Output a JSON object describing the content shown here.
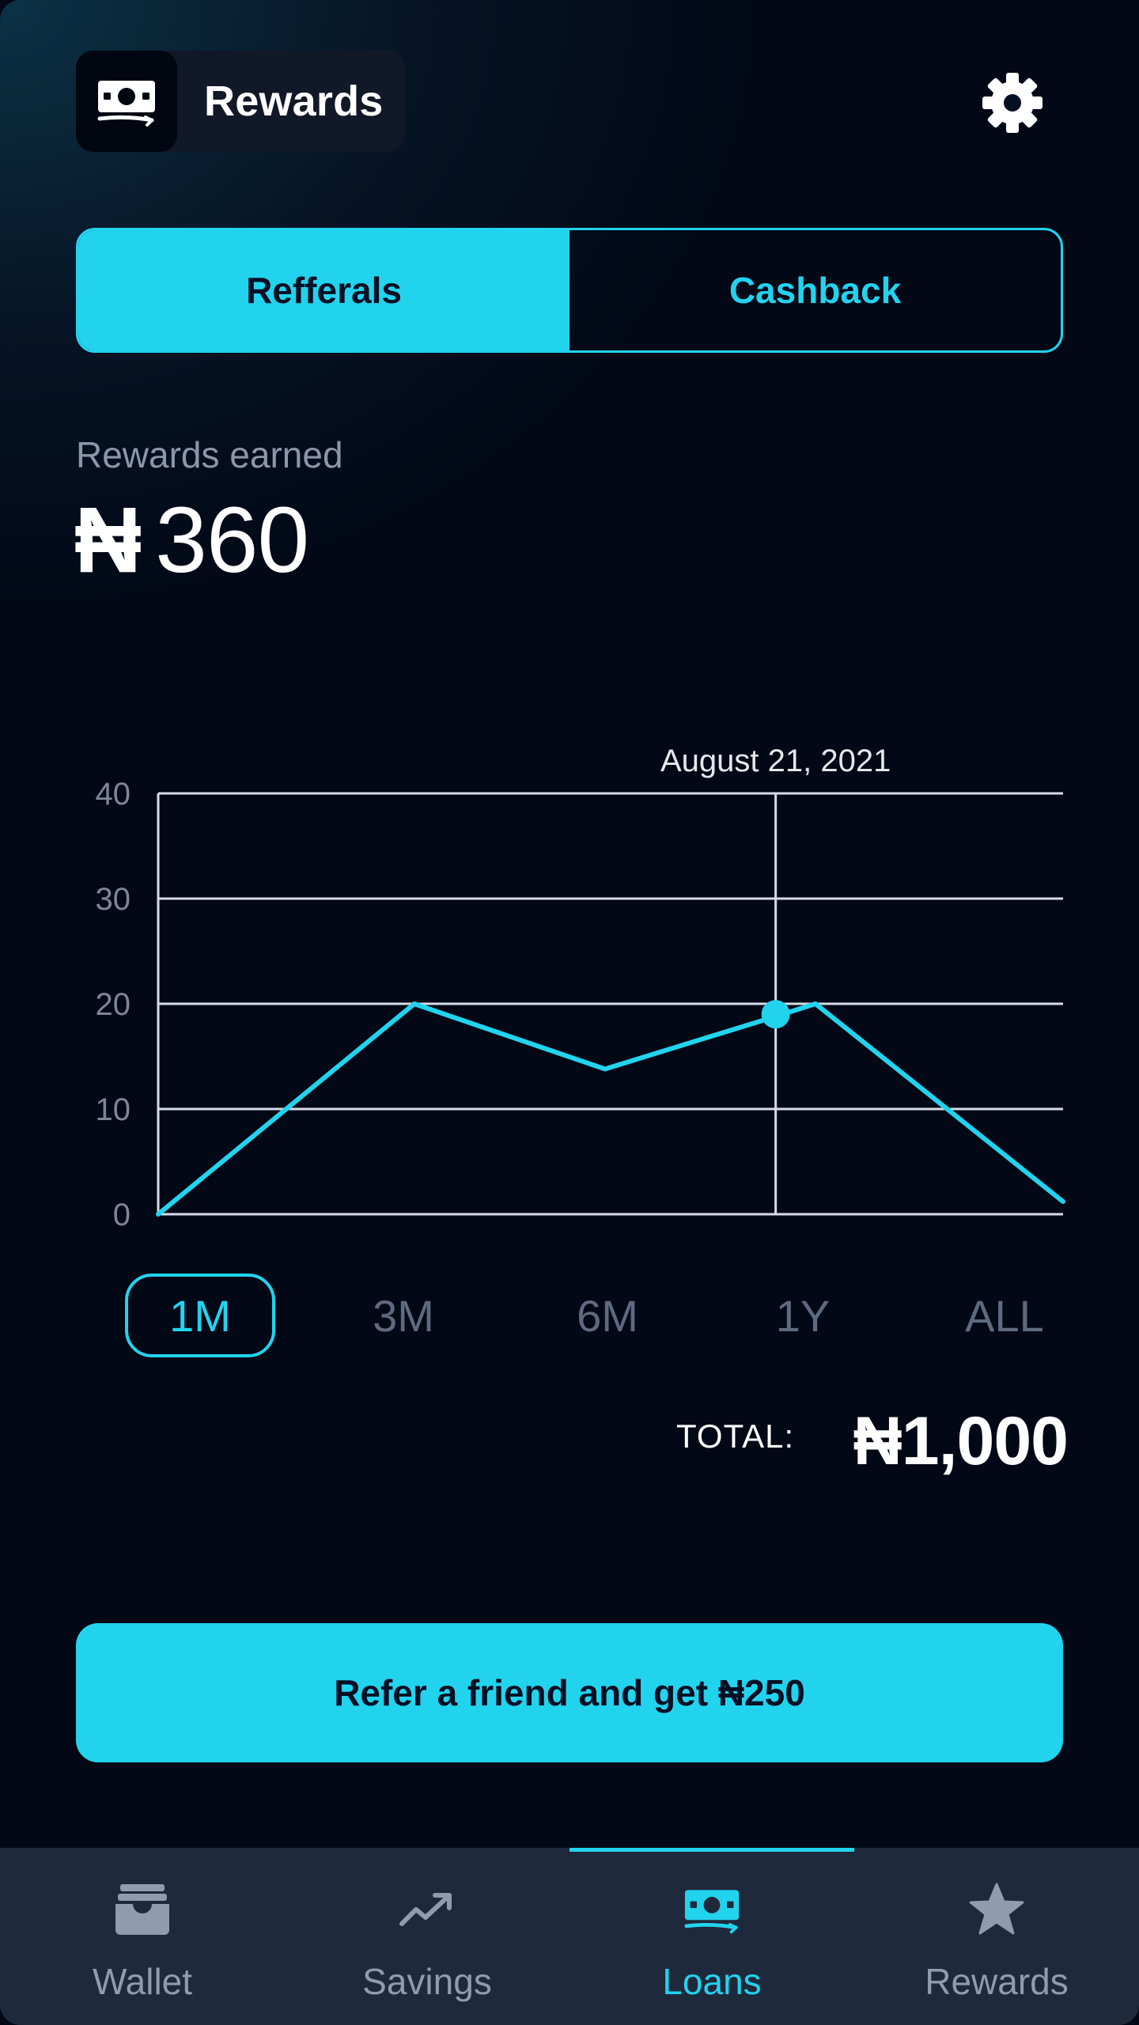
{
  "header": {
    "title": "Rewards",
    "logo_icon": "money-icon",
    "settings_icon": "gear-icon"
  },
  "tabs": [
    {
      "label": "Refferals",
      "active": true
    },
    {
      "label": "Cashback",
      "active": false
    }
  ],
  "summary": {
    "label": "Rewards earned",
    "currency": "₦",
    "amount": "360"
  },
  "chart_data": {
    "type": "line",
    "x": [
      0,
      9,
      15.7,
      21.7,
      23.1,
      31.8
    ],
    "y": [
      0,
      20,
      13.8,
      18.8,
      20,
      1.2
    ],
    "yticks": [
      0,
      10,
      20,
      30,
      40
    ],
    "ylim": [
      0,
      40
    ],
    "xlim": [
      0,
      31.8
    ],
    "selected": {
      "x": 21.7,
      "y": 19,
      "label": "August 21, 2021"
    },
    "grid": true,
    "line_color": "#22d3ee"
  },
  "ranges": [
    {
      "label": "1M",
      "active": true
    },
    {
      "label": "3M",
      "active": false
    },
    {
      "label": "6M",
      "active": false
    },
    {
      "label": "1Y",
      "active": false
    },
    {
      "label": "ALL",
      "active": false
    }
  ],
  "total": {
    "label": "TOTAL:",
    "value": "₦1,000"
  },
  "cta": {
    "label": "Refer a friend and get ₦250"
  },
  "nav": {
    "items": [
      {
        "label": "Wallet",
        "icon": "wallet-icon",
        "active": false
      },
      {
        "label": "Savings",
        "icon": "trending-up-icon",
        "active": false
      },
      {
        "label": "Loans",
        "icon": "money-icon",
        "active": true
      },
      {
        "label": "Rewards",
        "icon": "star-icon",
        "active": false
      }
    ]
  },
  "colors": {
    "accent": "#22d3ee",
    "background": "#020816",
    "nav_background": "#1e293b",
    "muted_text": "#8b97aa"
  }
}
